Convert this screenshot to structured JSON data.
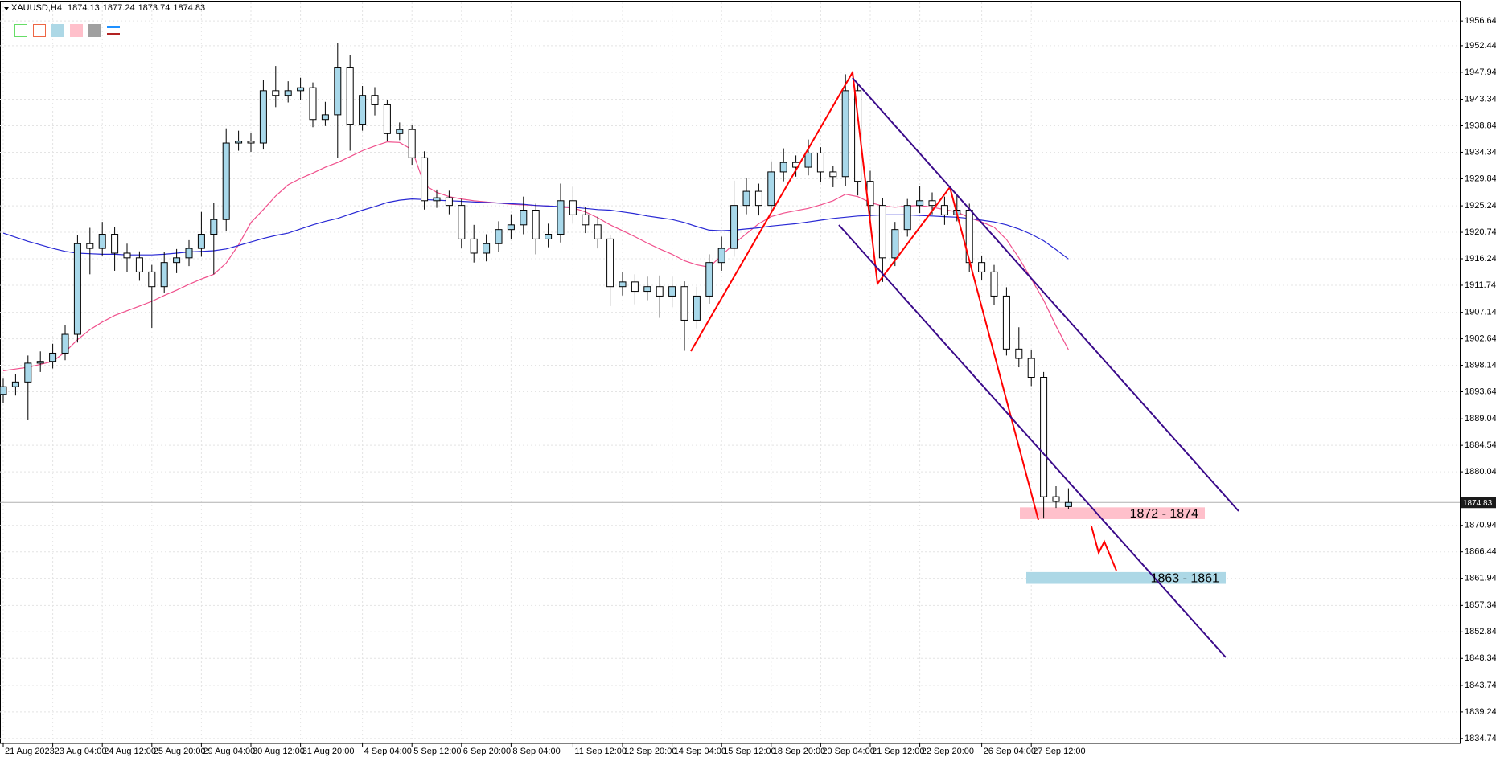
{
  "chart_data": {
    "type": "candlestick",
    "title": "XAUUSD,H4",
    "categories": [
      "21 Aug 2023",
      null,
      null,
      null,
      "23 Aug 04:00",
      null,
      null,
      null,
      "24 Aug 12:00",
      null,
      null,
      null,
      "25 Aug 20:00",
      null,
      null,
      null,
      "29 Aug 04:00",
      null,
      null,
      null,
      "30 Aug 12:00",
      null,
      null,
      null,
      "31 Aug 20:00",
      null,
      null,
      null,
      null,
      "4 Sep 04:00",
      null,
      null,
      null,
      "5 Sep 12:00",
      null,
      null,
      null,
      "6 Sep 20:00",
      null,
      null,
      null,
      "8 Sep 04:00",
      null,
      null,
      null,
      null,
      "11 Sep 12:00",
      null,
      null,
      null,
      "12 Sep 20:00",
      null,
      null,
      null,
      "14 Sep 04:00",
      null,
      null,
      null,
      "15 Sep 12:00",
      null,
      null,
      null,
      "18 Sep 20:00",
      null,
      null,
      null,
      "20 Sep 04:00",
      null,
      null,
      null,
      "21 Sep 12:00",
      null,
      null,
      null,
      "22 Sep 20:00",
      null,
      null,
      null,
      null,
      "26 Sep 04:00",
      null,
      null,
      null,
      "27 Sep 12:00",
      null,
      null,
      null
    ],
    "open": [
      1893.2,
      1894.5,
      1895.3,
      1898.5,
      1898.8,
      1900.2,
      1903.4,
      1918.8,
      1918.0,
      1920.4,
      1917.2,
      1916.4,
      1914.0,
      1911.5,
      1915.6,
      1916.4,
      1918.0,
      1920.4,
      1922.9,
      1935.9,
      1936.2,
      1935.9,
      1944.8,
      1944.0,
      1944.8,
      1945.3,
      1939.9,
      1940.7,
      1948.8,
      1939.1,
      1944.0,
      1942.4,
      1937.5,
      1938.2,
      1933.4,
      1926.1,
      1926.6,
      1925.3,
      1919.6,
      1917.2,
      1918.8,
      1921.2,
      1922.0,
      1924.5,
      1919.6,
      1920.4,
      1926.1,
      1923.7,
      1922.0,
      1919.6,
      1911.5,
      1912.3,
      1910.7,
      1911.5,
      1909.9,
      1911.5,
      1905.8,
      1909.9,
      1915.6,
      1918.0,
      1925.3,
      1927.7,
      1925.3,
      1931.0,
      1932.6,
      1931.8,
      1934.2,
      1931.0,
      1930.2,
      1944.8,
      1929.4,
      1925.3,
      1916.4,
      1921.2,
      1925.3,
      1926.1,
      1925.3,
      1923.7,
      1924.5,
      1915.6,
      1914.0,
      1909.9,
      1900.9,
      1899.3,
      1896.1,
      1875.8,
      1874.13
    ],
    "high": [
      1896.0,
      1896.6,
      1899.8,
      1900.5,
      1901.8,
      1905.0,
      1920.3,
      1921.5,
      1922.5,
      1921.6,
      1918.8,
      1917.5,
      1915.2,
      1917.4,
      1917.9,
      1919.4,
      1924.2,
      1925.8,
      1938.4,
      1938.0,
      1937.6,
      1946.6,
      1949.0,
      1946.4,
      1947.0,
      1946.2,
      1942.9,
      1952.9,
      1950.9,
      1945.6,
      1945.4,
      1943.2,
      1939.4,
      1939.0,
      1934.5,
      1928.0,
      1927.8,
      1926.4,
      1922.0,
      1920.4,
      1922.6,
      1923.8,
      1926.8,
      1925.6,
      1922.2,
      1929.0,
      1928.5,
      1925.0,
      1923.4,
      1920.3,
      1914.0,
      1913.6,
      1913.2,
      1913.4,
      1913.2,
      1912.4,
      1911.5,
      1917.0,
      1920.0,
      1929.5,
      1930.0,
      1929.0,
      1932.8,
      1935.0,
      1933.8,
      1936.5,
      1935.2,
      1932.0,
      1947.6,
      1946.0,
      1931.2,
      1926.5,
      1922.5,
      1926.4,
      1928.6,
      1927.5,
      1926.8,
      1927.0,
      1925.6,
      1916.8,
      1915.2,
      1911.4,
      1904.6,
      1900.8,
      1897.0,
      1877.6,
      1877.24
    ],
    "low": [
      1891.8,
      1893.0,
      1888.8,
      1897.0,
      1897.6,
      1899.0,
      1902.0,
      1913.6,
      1916.8,
      1914.2,
      1914.0,
      1912.5,
      1904.5,
      1910.4,
      1913.8,
      1915.0,
      1916.6,
      1913.6,
      1921.0,
      1934.6,
      1934.4,
      1934.8,
      1942.0,
      1942.8,
      1943.2,
      1938.6,
      1938.8,
      1933.4,
      1934.6,
      1938.0,
      1940.6,
      1936.2,
      1936.4,
      1932.2,
      1924.6,
      1924.9,
      1923.8,
      1918.0,
      1915.6,
      1915.8,
      1917.4,
      1919.6,
      1920.4,
      1917.0,
      1918.2,
      1919.0,
      1922.2,
      1920.6,
      1918.0,
      1908.2,
      1910.0,
      1908.5,
      1909.2,
      1906.2,
      1908.0,
      1900.6,
      1904.4,
      1908.6,
      1914.2,
      1916.6,
      1923.8,
      1923.6,
      1924.0,
      1929.4,
      1930.2,
      1930.4,
      1929.2,
      1928.4,
      1928.6,
      1927.0,
      1922.4,
      1912.3,
      1915.0,
      1920.0,
      1924.0,
      1923.8,
      1922.0,
      1922.6,
      1914.0,
      1912.6,
      1908.4,
      1899.8,
      1897.8,
      1894.6,
      1872.1,
      1873.9,
      1873.74
    ],
    "close": [
      1894.5,
      1895.3,
      1898.5,
      1898.8,
      1900.2,
      1903.4,
      1918.8,
      1918.0,
      1920.4,
      1917.2,
      1916.4,
      1914.0,
      1911.5,
      1915.6,
      1916.4,
      1918.0,
      1920.4,
      1922.9,
      1935.9,
      1936.2,
      1935.9,
      1944.8,
      1944.0,
      1944.8,
      1945.3,
      1939.9,
      1940.7,
      1948.8,
      1939.1,
      1944.0,
      1942.4,
      1937.5,
      1938.2,
      1933.4,
      1926.1,
      1926.6,
      1925.3,
      1919.6,
      1917.2,
      1918.8,
      1921.2,
      1922.0,
      1924.5,
      1919.6,
      1920.4,
      1926.1,
      1923.7,
      1922.0,
      1919.6,
      1911.5,
      1912.3,
      1910.7,
      1911.5,
      1909.9,
      1911.5,
      1905.8,
      1909.9,
      1915.6,
      1918.0,
      1925.3,
      1927.7,
      1925.3,
      1931.0,
      1932.6,
      1931.8,
      1934.2,
      1931.0,
      1930.2,
      1944.8,
      1929.4,
      1925.3,
      1916.4,
      1921.2,
      1925.3,
      1926.1,
      1925.3,
      1923.7,
      1924.5,
      1915.6,
      1914.0,
      1909.9,
      1900.9,
      1899.3,
      1896.1,
      1875.8,
      1875.0,
      1874.83
    ],
    "up_color": "#a8d8ea",
    "down_color": "#ffffff",
    "wick_color": "#000000",
    "moving_averages": [
      {
        "color": "#f0508c",
        "values": [
          1897.2,
          1897.5,
          1897.8,
          1898.3,
          1898.8,
          1900.4,
          1902.5,
          1904.2,
          1905.5,
          1906.6,
          1907.4,
          1908.2,
          1909.0,
          1910.0,
          1910.9,
          1911.9,
          1912.8,
          1913.6,
          1915.5,
          1918.6,
          1922.4,
          1924.6,
          1926.9,
          1928.8,
          1929.9,
          1930.8,
          1931.8,
          1932.6,
          1933.6,
          1934.6,
          1935.4,
          1936.1,
          1936.0,
          1934.8,
          1928.8,
          1927.5,
          1926.8,
          1926.4,
          1926.1,
          1925.9,
          1925.7,
          1925.5,
          1925.4,
          1925.3,
          1925.2,
          1925.0,
          1924.9,
          1924.2,
          1923.2,
          1922.0,
          1921.0,
          1920.0,
          1918.9,
          1917.9,
          1917.0,
          1915.9,
          1915.2,
          1914.8,
          1916.8,
          1918.8,
          1920.5,
          1922.2,
          1923.4,
          1924.0,
          1924.4,
          1924.8,
          1925.4,
          1926.1,
          1927.2,
          1926.8,
          1925.8,
          1925.2,
          1925.0,
          1925.2,
          1925.3,
          1925.0,
          1924.6,
          1924.2,
          1923.2,
          1922.5,
          1921.6,
          1919.5,
          1916.4,
          1912.8,
          1909.2,
          1904.8,
          1900.8
        ]
      },
      {
        "color": "#2828d4",
        "values": [
          1920.6,
          1919.9,
          1919.2,
          1918.6,
          1918.0,
          1917.5,
          1917.2,
          1917.1,
          1917.0,
          1917.0,
          1916.9,
          1916.9,
          1916.9,
          1917.0,
          1917.2,
          1917.4,
          1917.5,
          1917.6,
          1917.9,
          1918.5,
          1919.1,
          1919.7,
          1920.2,
          1920.6,
          1921.3,
          1922.0,
          1922.6,
          1923.1,
          1923.8,
          1924.5,
          1925.1,
          1925.8,
          1926.2,
          1926.4,
          1926.3,
          1926.2,
          1926.1,
          1926.0,
          1925.9,
          1925.8,
          1925.7,
          1925.6,
          1925.5,
          1925.3,
          1925.2,
          1925.1,
          1925.0,
          1924.8,
          1924.6,
          1924.5,
          1924.2,
          1923.9,
          1923.5,
          1923.2,
          1922.9,
          1922.4,
          1921.7,
          1921.1,
          1921.0,
          1921.1,
          1921.3,
          1921.5,
          1921.8,
          1922.0,
          1922.2,
          1922.5,
          1922.8,
          1923.1,
          1923.3,
          1923.5,
          1923.6,
          1923.7,
          1923.7,
          1923.7,
          1923.6,
          1923.5,
          1923.4,
          1923.3,
          1923.1,
          1922.8,
          1922.5,
          1922.0,
          1921.3,
          1920.4,
          1919.3,
          1917.8,
          1916.2
        ]
      }
    ],
    "ylim": [
      1833.9,
      1959.8
    ],
    "yticks": [
      1956.64,
      1952.44,
      1947.94,
      1943.34,
      1938.84,
      1934.34,
      1929.84,
      1925.24,
      1920.74,
      1916.24,
      1911.74,
      1907.14,
      1902.64,
      1898.14,
      1893.64,
      1889.04,
      1884.54,
      1880.04,
      1870.94,
      1866.44,
      1861.94,
      1857.34,
      1852.84,
      1848.34,
      1843.74,
      1839.24,
      1834.74
    ],
    "grid": true,
    "annotations": [
      {
        "label": "1872 - 1874",
        "low": 1872,
        "high": 1874,
        "color": "#ffc0cb"
      },
      {
        "label": "1863 - 1861",
        "low": 1861,
        "high": 1863,
        "color": "#add8e6"
      }
    ]
  }
}
